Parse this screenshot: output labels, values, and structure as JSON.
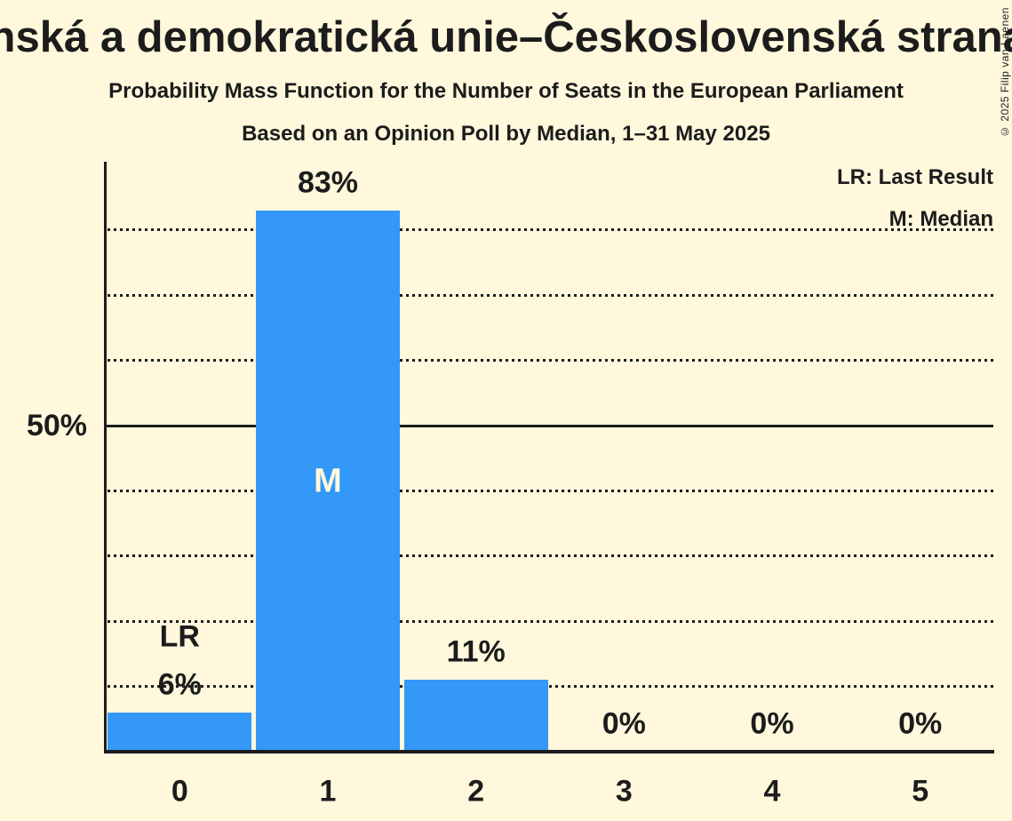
{
  "header": {
    "title": "Křesťanská a demokratická unie–Československá strana lidová",
    "subtitle": "Probability Mass Function for the Number of Seats in the European Parliament",
    "poll_line": "Based on an Opinion Poll by Median, 1–31 May 2025"
  },
  "watermark": "© 2025 Filip van Laenen",
  "legend": [
    {
      "label": "LR: Last Result"
    },
    {
      "label": "M: Median"
    }
  ],
  "colors": {
    "background": "#FFF8DC",
    "bar": "#3398F7",
    "text": "#1C1C1C",
    "median_label": "#FFF8DC"
  },
  "chart_data": {
    "type": "bar",
    "categories": [
      "0",
      "1",
      "2",
      "3",
      "4",
      "5"
    ],
    "values_percent": [
      6,
      83,
      11,
      0,
      0,
      0
    ],
    "bar_labels": [
      "6%",
      "83%",
      "11%",
      "0%",
      "0%",
      "0%"
    ],
    "y_axis": {
      "label": "50%",
      "tick_value": 50,
      "range_percent": [
        0,
        90
      ],
      "gridlines_percent": [
        10,
        20,
        30,
        40,
        50,
        60,
        70,
        80
      ]
    },
    "annotations": [
      {
        "bar_index": 0,
        "text": "LR",
        "meaning": "Last Result",
        "position": "above_label"
      },
      {
        "bar_index": 1,
        "text": "M",
        "meaning": "Median",
        "position": "inside"
      }
    ],
    "legend_position": "top-right",
    "grid": "dotted-horizontal"
  }
}
